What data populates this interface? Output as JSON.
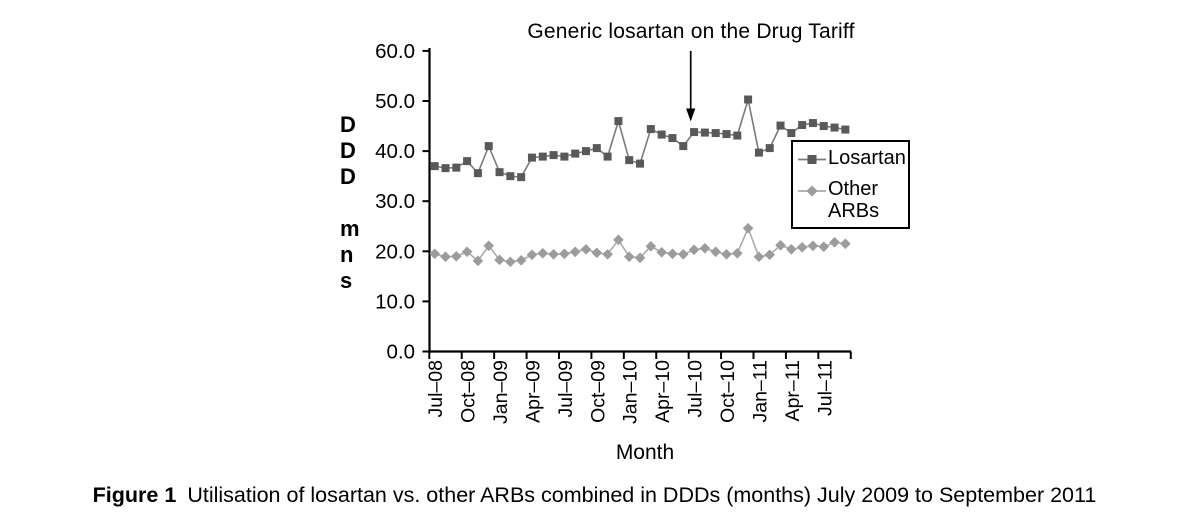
{
  "figure": {
    "caption_label": "Figure 1",
    "caption_text": "Utilisation of losartan vs. other ARBs combined in DDDs (months) July 2009 to September 2011"
  },
  "chart_data": {
    "type": "line",
    "annotation": {
      "text": "Generic losartan on the Drug Tariff",
      "arrow_direction": "down",
      "arrow_points_to": "Jul-10"
    },
    "xlabel": "Month",
    "ylabel": "DDD mns",
    "ylabel_stacked": [
      "D",
      "D",
      "D",
      "m",
      "n",
      "s"
    ],
    "ylim": [
      0,
      60
    ],
    "ytick_labels": [
      "0.0",
      "10.0",
      "20.0",
      "30.0",
      "40.0",
      "50.0",
      "60.0"
    ],
    "x_tick_labels": [
      "Jul–08",
      "Oct–08",
      "Jan–09",
      "Apr–09",
      "Jul–09",
      "Oct–09",
      "Jan–10",
      "Apr–10",
      "Jul–10",
      "Oct–10",
      "Jan–11",
      "Apr–11",
      "Jul–11"
    ],
    "x_label_every_n_points": 3,
    "n_points": 39,
    "grid": false,
    "legend_position": "inside-right",
    "series": [
      {
        "name": "Losartan",
        "marker": "square",
        "marker_color": "#595959",
        "line_color": "#7a7a7a",
        "values": [
          37.0,
          36.6,
          36.7,
          38.0,
          35.6,
          41.0,
          35.8,
          35.0,
          34.8,
          38.7,
          38.9,
          39.2,
          38.9,
          39.5,
          40.0,
          40.6,
          38.9,
          46.0,
          38.2,
          37.5,
          44.4,
          43.3,
          42.6,
          41.0,
          43.8,
          43.7,
          43.6,
          43.4,
          43.1,
          50.3,
          39.7,
          40.6,
          45.1,
          43.6,
          45.2,
          45.6,
          45.0,
          44.7,
          44.3
        ]
      },
      {
        "name": "Other ARBs",
        "marker": "diamond",
        "marker_color": "#9c9c9c",
        "line_color": "#ababab",
        "values": [
          19.5,
          18.9,
          19.0,
          19.9,
          18.1,
          21.1,
          18.3,
          17.9,
          18.2,
          19.3,
          19.6,
          19.4,
          19.5,
          19.9,
          20.4,
          19.7,
          19.4,
          22.3,
          18.9,
          18.7,
          21.0,
          19.8,
          19.5,
          19.4,
          20.3,
          20.6,
          19.9,
          19.4,
          19.6,
          24.6,
          18.9,
          19.3,
          21.2,
          20.4,
          20.8,
          21.1,
          20.9,
          21.8,
          21.5
        ]
      }
    ],
    "colors": {
      "axis": "#000000",
      "text": "#000000"
    }
  }
}
